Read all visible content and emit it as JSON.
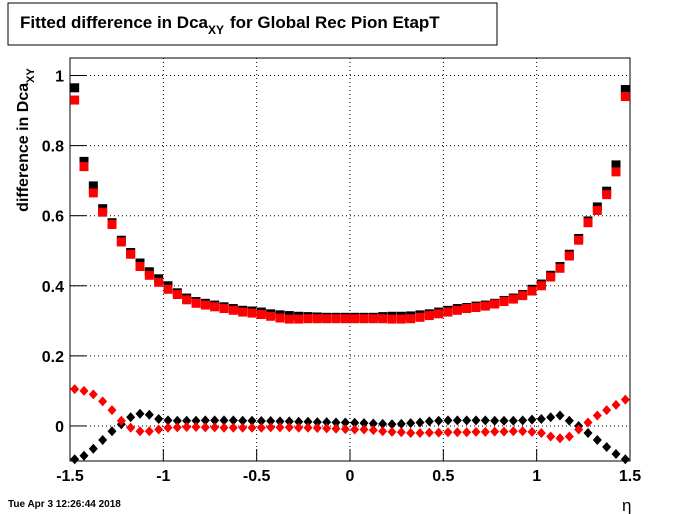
{
  "chart_data": {
    "type": "scatter",
    "title": [
      "Fitted difference in Dca",
      "XY",
      "for Global Rec Pion EtapT"
    ],
    "y_label": [
      "difference in Dca",
      "XY"
    ],
    "x_label": "η",
    "timestamp": "Tue Apr  3 12:26:44 2018",
    "grid": true,
    "xlim": [
      -1.5,
      1.5
    ],
    "ylim": [
      -0.1,
      1.05
    ],
    "xticks": [
      -1.5,
      -1,
      -0.5,
      0,
      0.5,
      1,
      1.5
    ],
    "yticks": [
      0,
      0.2,
      0.4,
      0.6,
      0.8,
      1
    ],
    "x": [
      -1.475,
      -1.425,
      -1.375,
      -1.325,
      -1.275,
      -1.225,
      -1.175,
      -1.125,
      -1.075,
      -1.025,
      -0.975,
      -0.925,
      -0.875,
      -0.825,
      -0.775,
      -0.725,
      -0.675,
      -0.625,
      -0.575,
      -0.525,
      -0.475,
      -0.425,
      -0.375,
      -0.325,
      -0.275,
      -0.225,
      -0.175,
      -0.125,
      -0.075,
      -0.025,
      0.025,
      0.075,
      0.125,
      0.175,
      0.225,
      0.275,
      0.325,
      0.375,
      0.425,
      0.475,
      0.525,
      0.575,
      0.625,
      0.675,
      0.725,
      0.775,
      0.825,
      0.875,
      0.925,
      0.975,
      1.025,
      1.075,
      1.125,
      1.175,
      1.225,
      1.275,
      1.325,
      1.375,
      1.425,
      1.475
    ],
    "series": [
      {
        "color": "#000000",
        "marker": "square",
        "values": [
          0.965,
          0.755,
          0.685,
          0.62,
          0.58,
          0.53,
          0.495,
          0.465,
          0.44,
          0.42,
          0.4,
          0.38,
          0.365,
          0.355,
          0.35,
          0.345,
          0.34,
          0.335,
          0.33,
          0.328,
          0.325,
          0.32,
          0.317,
          0.315,
          0.313,
          0.312,
          0.311,
          0.31,
          0.31,
          0.31,
          0.31,
          0.31,
          0.31,
          0.312,
          0.313,
          0.313,
          0.314,
          0.317,
          0.32,
          0.325,
          0.33,
          0.335,
          0.338,
          0.342,
          0.345,
          0.35,
          0.358,
          0.365,
          0.375,
          0.39,
          0.405,
          0.43,
          0.455,
          0.49,
          0.535,
          0.585,
          0.625,
          0.67,
          0.745,
          0.96
        ]
      },
      {
        "color": "#ff0000",
        "marker": "square",
        "values": [
          0.93,
          0.74,
          0.665,
          0.61,
          0.575,
          0.525,
          0.49,
          0.455,
          0.43,
          0.41,
          0.39,
          0.375,
          0.36,
          0.35,
          0.345,
          0.34,
          0.335,
          0.33,
          0.325,
          0.322,
          0.318,
          0.313,
          0.308,
          0.305,
          0.305,
          0.306,
          0.306,
          0.306,
          0.306,
          0.306,
          0.306,
          0.306,
          0.306,
          0.306,
          0.305,
          0.305,
          0.306,
          0.31,
          0.315,
          0.32,
          0.325,
          0.33,
          0.335,
          0.338,
          0.342,
          0.348,
          0.355,
          0.362,
          0.372,
          0.385,
          0.4,
          0.425,
          0.45,
          0.485,
          0.53,
          0.58,
          0.615,
          0.66,
          0.725,
          0.94
        ]
      },
      {
        "color": "#000000",
        "marker": "diamond",
        "values": [
          -0.095,
          -0.085,
          -0.065,
          -0.04,
          -0.015,
          0.005,
          0.025,
          0.035,
          0.032,
          0.02,
          0.016,
          0.015,
          0.015,
          0.015,
          0.016,
          0.016,
          0.016,
          0.016,
          0.015,
          0.015,
          0.014,
          0.014,
          0.013,
          0.013,
          0.012,
          0.012,
          0.011,
          0.011,
          0.01,
          0.01,
          0.009,
          0.008,
          0.007,
          0.006,
          0.005,
          0.006,
          0.008,
          0.01,
          0.013,
          0.015,
          0.016,
          0.016,
          0.016,
          0.016,
          0.016,
          0.015,
          0.015,
          0.015,
          0.016,
          0.018,
          0.02,
          0.025,
          0.03,
          0.015,
          0.0,
          -0.02,
          -0.04,
          -0.06,
          -0.08,
          -0.095
        ]
      },
      {
        "color": "#ff0000",
        "marker": "diamond",
        "values": [
          0.105,
          0.1,
          0.09,
          0.07,
          0.045,
          0.015,
          -0.005,
          -0.015,
          -0.015,
          -0.01,
          -0.005,
          -0.004,
          -0.003,
          -0.003,
          -0.004,
          -0.004,
          -0.005,
          -0.005,
          -0.005,
          -0.005,
          -0.005,
          -0.004,
          -0.004,
          -0.004,
          -0.005,
          -0.005,
          -0.006,
          -0.007,
          -0.008,
          -0.009,
          -0.01,
          -0.01,
          -0.012,
          -0.015,
          -0.017,
          -0.018,
          -0.02,
          -0.02,
          -0.019,
          -0.019,
          -0.018,
          -0.018,
          -0.018,
          -0.017,
          -0.017,
          -0.016,
          -0.016,
          -0.015,
          -0.015,
          -0.017,
          -0.02,
          -0.03,
          -0.035,
          -0.03,
          -0.01,
          0.01,
          0.03,
          0.045,
          0.06,
          0.075
        ]
      }
    ]
  }
}
